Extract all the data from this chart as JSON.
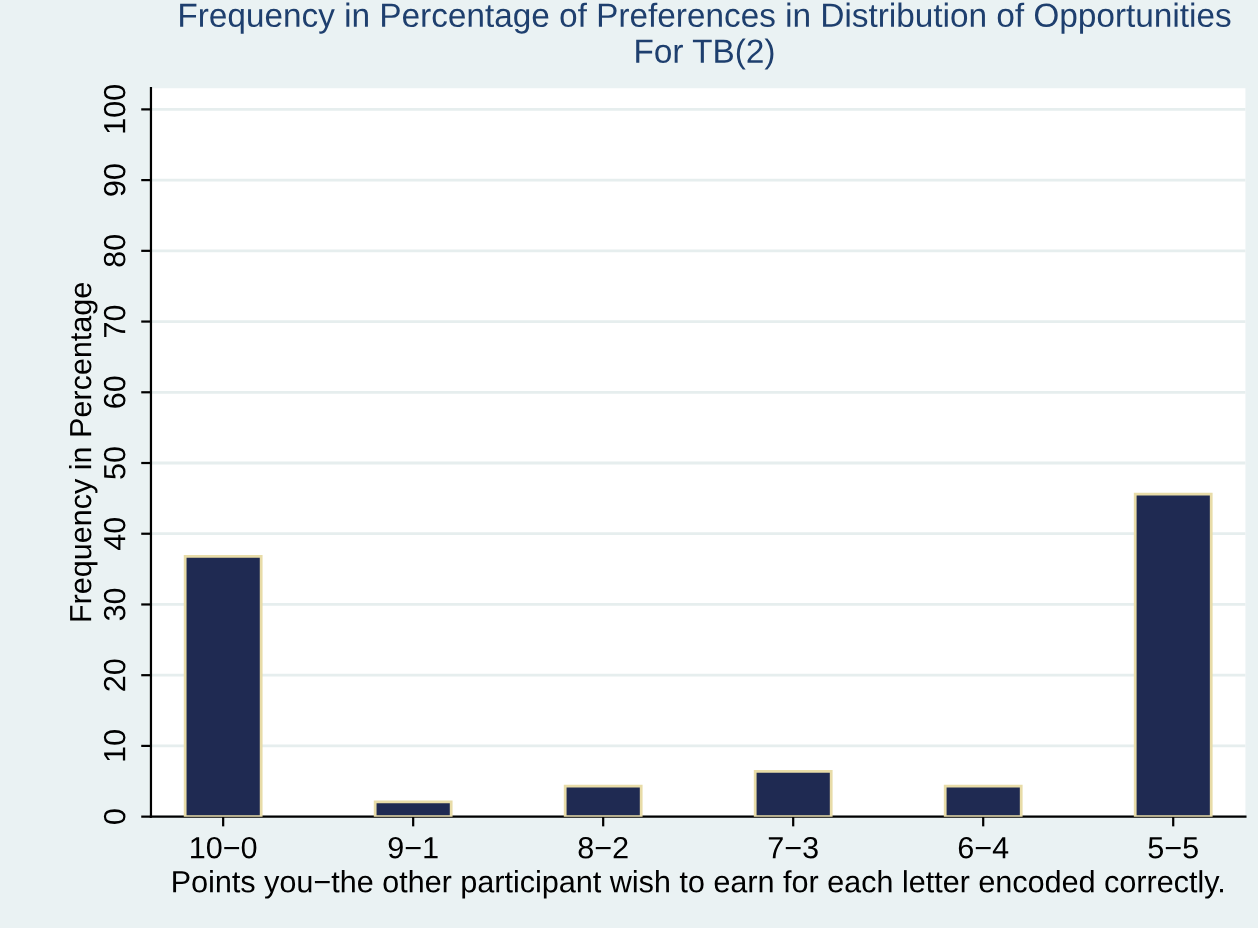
{
  "chart_data": {
    "type": "bar",
    "title": "Frequency in Percentage of Preferences in Distribution of Opportunities\nFor TB(2)",
    "xlabel": "Points you−the other participant wish to earn for each letter encoded correctly.",
    "ylabel": "Frequency in Percentage",
    "categories": [
      "10−0",
      "9−1",
      "8−2",
      "7−3",
      "6−4",
      "5−5"
    ],
    "values": [
      36.8,
      2.1,
      4.3,
      6.4,
      4.3,
      45.6
    ],
    "color": "#1f2a52",
    "ylim": [
      0,
      103
    ],
    "yticks": [
      0,
      10,
      20,
      30,
      40,
      50,
      60,
      70,
      80,
      90,
      100
    ],
    "grid": "y"
  }
}
